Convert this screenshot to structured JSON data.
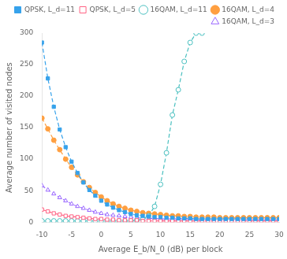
{
  "chart_data": {
    "type": "line",
    "xlabel": "Average E_b/N_0 (dB) per block",
    "ylabel": "Average number of visited nodes",
    "xlim": [
      -10,
      30
    ],
    "ylim": [
      0,
      300
    ],
    "xticks": [
      -10,
      -5,
      0,
      5,
      10,
      15,
      20,
      25,
      30
    ],
    "yticks": [
      0,
      50,
      100,
      150,
      200,
      250,
      300
    ],
    "grid": false,
    "legend": "upper right",
    "series": [
      {
        "name": "QPSK, L_d=11",
        "marker": "square",
        "line_style": "dashed",
        "x": [
          -10,
          -9,
          -8,
          -7,
          -6,
          -5,
          -4,
          -3,
          -2,
          -1,
          0,
          1,
          2,
          3,
          4,
          5,
          6,
          7,
          8,
          9,
          10,
          11,
          12,
          13,
          14,
          15,
          16,
          17,
          18,
          19,
          20,
          21,
          22,
          23,
          24,
          25,
          26,
          27,
          28,
          29,
          30
        ],
        "values": [
          285,
          228,
          183,
          147,
          119,
          96,
          78,
          63,
          51,
          42,
          34,
          28,
          23,
          19,
          16,
          13,
          11,
          10,
          9,
          8,
          8,
          7,
          7,
          6,
          6,
          6,
          5,
          5,
          5,
          5,
          5,
          5,
          5,
          5,
          5,
          5,
          5,
          5,
          5,
          5,
          5
        ]
      },
      {
        "name": "QPSK, L_d=5",
        "marker": "open-square",
        "line_style": "dashed",
        "x": [
          -10,
          -9,
          -8,
          -7,
          -6,
          -5,
          -4,
          -3,
          -2,
          -1,
          0,
          1,
          2,
          3,
          4,
          5,
          6,
          7,
          8,
          9,
          10,
          11,
          12,
          13,
          14,
          15,
          16,
          17,
          18,
          19,
          20,
          21,
          22,
          23,
          24,
          25,
          26,
          27,
          28,
          29,
          30
        ],
        "values": [
          20,
          17,
          14,
          12,
          10,
          9,
          8,
          7,
          6,
          5,
          5,
          4,
          4,
          3,
          3,
          3,
          3,
          2,
          2,
          2,
          2,
          2,
          2,
          2,
          2,
          2,
          2,
          2,
          2,
          2,
          2,
          2,
          2,
          2,
          2,
          2,
          2,
          2,
          2,
          2,
          2
        ]
      },
      {
        "name": "16QAM, L_d=11",
        "marker": "open-circle",
        "line_style": "dashed",
        "x": [
          -10,
          -9,
          -8,
          -7,
          -6,
          -5,
          -4,
          -3,
          -2,
          -1,
          0,
          1,
          2,
          3,
          4,
          5,
          6,
          7,
          8,
          9,
          10,
          11,
          12,
          13,
          14,
          15,
          16,
          17
        ],
        "values": [
          2,
          2,
          2,
          2,
          2,
          2,
          2,
          2,
          2,
          2,
          2,
          2,
          2,
          2,
          2,
          2,
          3,
          5,
          10,
          25,
          60,
          110,
          170,
          210,
          255,
          285,
          300,
          300
        ]
      },
      {
        "name": "16QAM, L_d=4",
        "marker": "circle",
        "line_style": "dashed",
        "x": [
          -10,
          -9,
          -8,
          -7,
          -6,
          -5,
          -4,
          -3,
          -2,
          -1,
          0,
          1,
          2,
          3,
          4,
          5,
          6,
          7,
          8,
          9,
          10,
          11,
          12,
          13,
          14,
          15,
          16,
          17,
          18,
          19,
          20,
          21,
          22,
          23,
          24,
          25,
          26,
          27,
          28,
          29,
          30
        ],
        "values": [
          165,
          148,
          130,
          115,
          100,
          87,
          75,
          64,
          55,
          47,
          40,
          34,
          29,
          25,
          22,
          19,
          17,
          15,
          14,
          13,
          12,
          11,
          10,
          10,
          9,
          9,
          8,
          8,
          8,
          8,
          7,
          7,
          7,
          7,
          7,
          7,
          7,
          7,
          7,
          7,
          7
        ]
      },
      {
        "name": "16QAM, L_d=3",
        "marker": "open-triangle",
        "line_style": "dashed",
        "x": [
          -10,
          -9,
          -8,
          -7,
          -6,
          -5,
          -4,
          -3,
          -2,
          -1,
          0,
          1,
          2,
          3,
          4,
          5,
          6,
          7,
          8,
          9,
          10,
          11,
          12,
          13,
          14,
          15,
          16,
          17,
          18,
          19,
          20,
          21,
          22,
          23,
          24,
          25,
          26,
          27,
          28,
          29,
          30
        ],
        "values": [
          58,
          51,
          45,
          39,
          34,
          29,
          25,
          22,
          19,
          16,
          14,
          12,
          11,
          10,
          9,
          8,
          7,
          7,
          6,
          6,
          5,
          5,
          5,
          5,
          5,
          5,
          4,
          4,
          4,
          4,
          4,
          4,
          4,
          4,
          4,
          4,
          4,
          4,
          4,
          4,
          4
        ]
      }
    ]
  }
}
